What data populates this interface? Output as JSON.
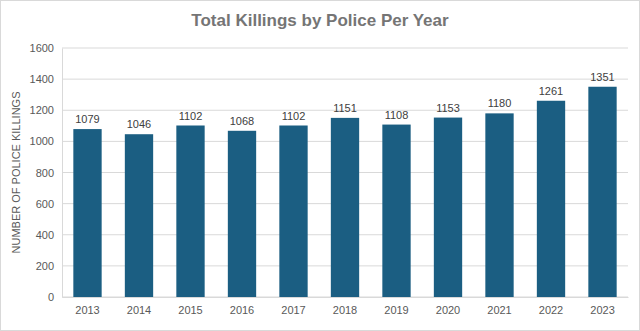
{
  "chart_data": {
    "type": "bar",
    "title": "Total Killings by Police Per Year",
    "ylabel": "NUMBER OF POLICE KILLINGS",
    "categories": [
      "2013",
      "2014",
      "2015",
      "2016",
      "2017",
      "2018",
      "2019",
      "2020",
      "2021",
      "2022",
      "2023"
    ],
    "values": [
      1079,
      1046,
      1102,
      1068,
      1102,
      1151,
      1108,
      1153,
      1180,
      1261,
      1351
    ],
    "color": "#1b5e82",
    "ylim": [
      0,
      1600
    ],
    "yticks": [
      0,
      200,
      400,
      600,
      800,
      1000,
      1200,
      1400,
      1600
    ],
    "grid": true,
    "data_labels": true
  }
}
